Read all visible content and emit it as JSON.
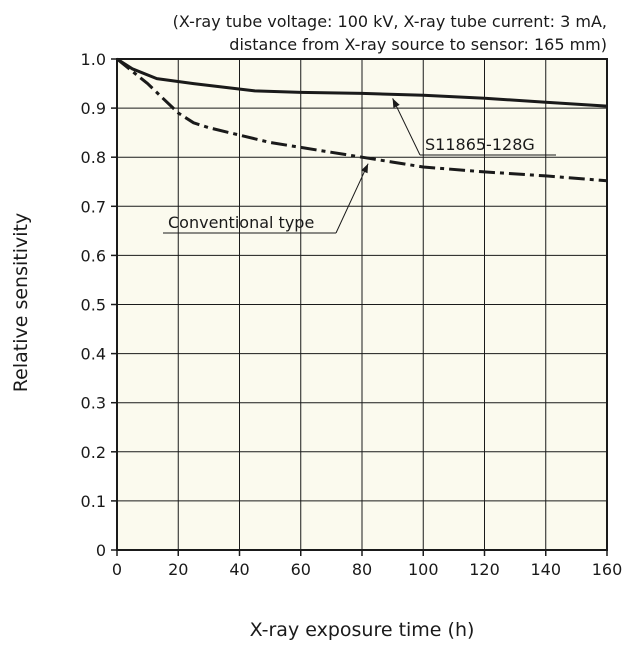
{
  "chart_data": {
    "type": "line",
    "conditions": [
      "(X-ray tube voltage: 100 kV, X-ray tube current: 3 mA,",
      "distance from X-ray source to sensor: 165 mm)"
    ],
    "xlabel": "X-ray exposure time (h)",
    "ylabel": "Relative sensitivity",
    "xlim": [
      0,
      160
    ],
    "ylim": [
      0,
      1.0
    ],
    "x_ticks": [
      "0",
      "20",
      "40",
      "60",
      "80",
      "100",
      "120",
      "140",
      "160"
    ],
    "y_ticks": [
      "0",
      "0.1",
      "0.2",
      "0.3",
      "0.4",
      "0.5",
      "0.6",
      "0.7",
      "0.8",
      "0.9",
      "1.0"
    ],
    "grid": true,
    "plot_background": "#fbfaee",
    "line_color": "#1a1a1a",
    "series": [
      {
        "name": "S11865-128G",
        "style": "solid",
        "x": [
          0,
          5,
          13,
          25,
          45,
          60,
          80,
          100,
          120,
          140,
          160
        ],
        "y": [
          1.0,
          0.98,
          0.96,
          0.95,
          0.935,
          0.932,
          0.93,
          0.926,
          0.92,
          0.912,
          0.904
        ]
      },
      {
        "name": "Conventional type",
        "style": "dash-dot",
        "x": [
          0,
          5,
          10,
          15,
          20,
          25,
          30,
          40,
          50,
          60,
          70,
          80,
          90,
          100,
          120,
          140,
          160
        ],
        "y": [
          1.0,
          0.975,
          0.95,
          0.92,
          0.89,
          0.87,
          0.86,
          0.845,
          0.83,
          0.82,
          0.81,
          0.8,
          0.79,
          0.78,
          0.77,
          0.762,
          0.752
        ]
      }
    ],
    "annotations": [
      {
        "series": "S11865-128G",
        "text": "S11865-128G",
        "point_x": 90,
        "point_y": 0.928
      },
      {
        "series": "Conventional type",
        "text": "Conventional type",
        "point_x": 82,
        "point_y": 0.795
      }
    ]
  }
}
